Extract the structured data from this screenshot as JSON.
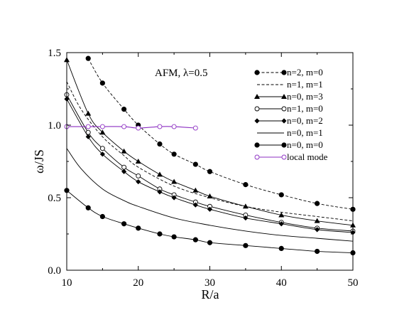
{
  "chart_data": {
    "type": "line",
    "annotation": "AFM, λ=0.5",
    "xlabel": "R/a",
    "ylabel": "ω/JS",
    "xlim": [
      10,
      50
    ],
    "ylim": [
      0.0,
      1.5
    ],
    "xticks": [
      10,
      20,
      30,
      40,
      50
    ],
    "xtick_labels": [
      "10",
      "20",
      "30",
      "40",
      "50"
    ],
    "yticks": [
      0.0,
      0.5,
      1.0,
      1.5
    ],
    "ytick_labels": [
      "0.0",
      "0.5",
      "1.0",
      "1.5"
    ],
    "grid": false,
    "legend_position": "top-right",
    "series": [
      {
        "name": "n=2, m=0",
        "color": "#000000",
        "line": "dashed",
        "marker": "filled-circle",
        "x": [
          13,
          15,
          18,
          20,
          23,
          25,
          28,
          30,
          35,
          40,
          45,
          50
        ],
        "y": [
          1.46,
          1.29,
          1.11,
          1.0,
          0.87,
          0.8,
          0.73,
          0.68,
          0.59,
          0.52,
          0.46,
          0.42
        ],
        "marker_x": [
          13,
          15,
          18,
          20,
          23,
          25,
          28,
          30,
          35,
          40,
          45,
          50
        ]
      },
      {
        "name": "n=1, m=1",
        "color": "#000000",
        "line": "dashed",
        "marker": "none",
        "x": [
          10,
          12,
          15,
          18,
          20,
          25,
          30,
          35,
          40,
          45,
          50
        ],
        "y": [
          1.3,
          1.11,
          0.92,
          0.79,
          0.71,
          0.58,
          0.5,
          0.44,
          0.4,
          0.37,
          0.34
        ],
        "marker_x": []
      },
      {
        "name": "n=0, m=3",
        "color": "#000000",
        "line": "solid",
        "marker": "filled-triangle",
        "x": [
          10,
          13,
          15,
          18,
          20,
          23,
          25,
          28,
          30,
          35,
          40,
          45,
          50
        ],
        "y": [
          1.45,
          1.08,
          0.95,
          0.82,
          0.75,
          0.66,
          0.61,
          0.55,
          0.51,
          0.44,
          0.38,
          0.34,
          0.31
        ],
        "marker_x": [
          10,
          13,
          15,
          18,
          20,
          23,
          25,
          28,
          30,
          35,
          40,
          45,
          50
        ]
      },
      {
        "name": "n=1, m=0",
        "color": "#000000",
        "line": "solid",
        "marker": "open-circle",
        "x": [
          10,
          13,
          15,
          18,
          20,
          23,
          25,
          28,
          30,
          35,
          40,
          45,
          50
        ],
        "y": [
          1.21,
          0.95,
          0.84,
          0.71,
          0.65,
          0.56,
          0.52,
          0.47,
          0.44,
          0.38,
          0.33,
          0.29,
          0.27
        ],
        "marker_x": [
          10,
          13,
          15,
          18,
          20,
          23,
          25,
          28,
          30,
          35,
          40,
          45,
          50
        ]
      },
      {
        "name": "n=0, m=2",
        "color": "#000000",
        "line": "solid",
        "marker": "filled-diamond",
        "x": [
          10,
          13,
          15,
          18,
          20,
          23,
          25,
          28,
          30,
          35,
          40,
          45,
          50
        ],
        "y": [
          1.18,
          0.92,
          0.8,
          0.68,
          0.61,
          0.54,
          0.5,
          0.45,
          0.42,
          0.36,
          0.32,
          0.28,
          0.26
        ],
        "marker_x": [
          10,
          13,
          15,
          18,
          20,
          23,
          25,
          28,
          30,
          35,
          40,
          45,
          50
        ]
      },
      {
        "name": "n=0, m=1",
        "color": "#000000",
        "line": "solid",
        "marker": "none",
        "x": [
          10,
          12,
          15,
          18,
          20,
          25,
          30,
          35,
          40,
          45,
          50
        ],
        "y": [
          0.84,
          0.7,
          0.56,
          0.48,
          0.44,
          0.36,
          0.31,
          0.27,
          0.24,
          0.22,
          0.2
        ],
        "marker_x": []
      },
      {
        "name": "n=0, m=0",
        "color": "#000000",
        "line": "solid",
        "marker": "filled-circle",
        "x": [
          10,
          13,
          15,
          18,
          20,
          23,
          25,
          28,
          30,
          35,
          40,
          45,
          50
        ],
        "y": [
          0.55,
          0.43,
          0.37,
          0.32,
          0.29,
          0.25,
          0.23,
          0.21,
          0.19,
          0.17,
          0.15,
          0.13,
          0.12
        ],
        "marker_x": [
          10,
          13,
          15,
          18,
          20,
          23,
          25,
          28,
          30,
          35,
          40,
          45,
          50
        ]
      },
      {
        "name": "local mode",
        "color": "#8c2fc2",
        "line": "solid",
        "marker": "open-circle",
        "x": [
          10,
          13,
          15,
          18,
          20,
          23,
          25,
          28
        ],
        "y": [
          0.99,
          0.99,
          0.99,
          0.99,
          0.98,
          0.99,
          0.99,
          0.98
        ],
        "marker_x": [
          10,
          13,
          15,
          18,
          20,
          23,
          25,
          28
        ]
      }
    ]
  }
}
